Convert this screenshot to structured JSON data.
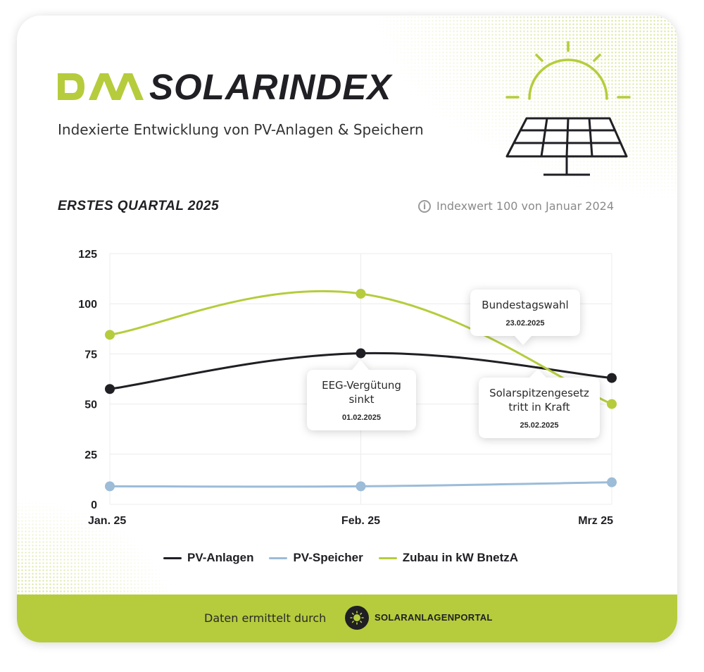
{
  "header": {
    "brand_title": "SOLARINDEX",
    "subtitle": "Indexierte Entwicklung von PV-Anlagen & Speichern"
  },
  "quarter_label": "ERSTES QUARTAL 2025",
  "index_note": "Indexwert 100 von Januar 2024",
  "colors": {
    "dark": "#1f1f24",
    "blue": "#9cbcd8",
    "green": "#b6cc3c"
  },
  "chart_data": {
    "type": "line",
    "categories": [
      "Jan. 25",
      "Feb. 25",
      "Mrz 25"
    ],
    "yticks": [
      0,
      25,
      50,
      75,
      100,
      125
    ],
    "ylim": [
      0,
      125
    ],
    "grid": true,
    "legend_position": "bottom",
    "series": [
      {
        "name": "PV-Anlagen",
        "color": "#1f1f24",
        "values": [
          57.5,
          75.3,
          63
        ]
      },
      {
        "name": "PV-Speicher",
        "color": "#9cbcd8",
        "values": [
          9,
          9,
          11
        ]
      },
      {
        "name": "Zubau in kW BnetzA",
        "color": "#b6cc3c",
        "values": [
          84.5,
          105,
          50
        ]
      }
    ],
    "annotations": [
      {
        "title": "EEG-Vergütung sinkt",
        "date": "01.02.2025"
      },
      {
        "title": "Bundestagswahl",
        "date": "23.02.2025"
      },
      {
        "title": "Solarspitzengesetz tritt in Kraft",
        "date": "25.02.2025"
      }
    ]
  },
  "footer": {
    "text": "Daten ermittelt durch",
    "portal_name": "SOLARANLAGENPORTAL"
  }
}
